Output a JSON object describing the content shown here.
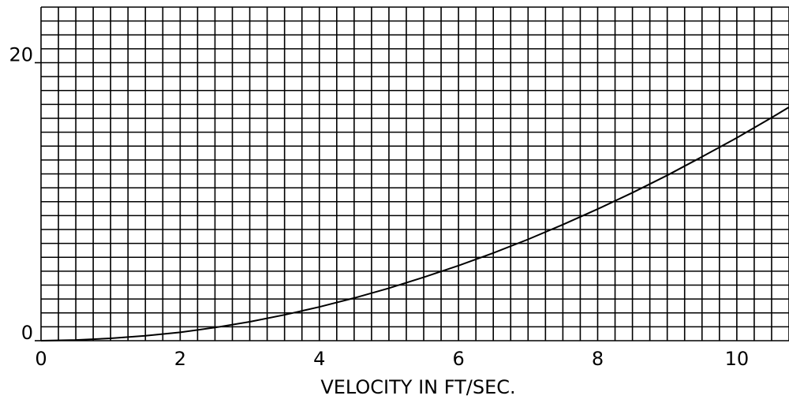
{
  "chart_data": {
    "type": "line",
    "title": "",
    "xlabel": "VELOCITY IN FT/SEC.",
    "ylabel": "",
    "xlim": [
      0,
      10.75
    ],
    "ylim": [
      0,
      24
    ],
    "x_ticks": [
      {
        "value": 0,
        "label": "0"
      },
      {
        "value": 2,
        "label": "2"
      },
      {
        "value": 4,
        "label": "4"
      },
      {
        "value": 6,
        "label": "6"
      },
      {
        "value": 8,
        "label": "8"
      },
      {
        "value": 10,
        "label": "10"
      }
    ],
    "y_ticks": [
      {
        "value": 0,
        "label": "0"
      },
      {
        "value": 20,
        "label": "20"
      }
    ],
    "grid": true,
    "grid_step_x": 0.25,
    "grid_step_y": 1,
    "legend": "none",
    "line_color": "#000000",
    "series": [
      {
        "x": [
          0,
          0.5,
          1,
          1.5,
          2,
          2.5,
          3,
          3.5,
          4,
          4.5,
          5,
          5.5,
          6,
          6.5,
          7,
          7.5,
          8,
          8.5,
          9,
          9.5,
          10,
          10.5,
          10.75
        ],
        "values": [
          0,
          0.05,
          0.17,
          0.35,
          0.6,
          0.95,
          1.36,
          1.86,
          2.43,
          3.07,
          3.78,
          4.56,
          5.4,
          6.31,
          7.29,
          8.35,
          9.47,
          10.65,
          11.9,
          13.23,
          14.6,
          16.05,
          16.8
        ]
      }
    ]
  }
}
